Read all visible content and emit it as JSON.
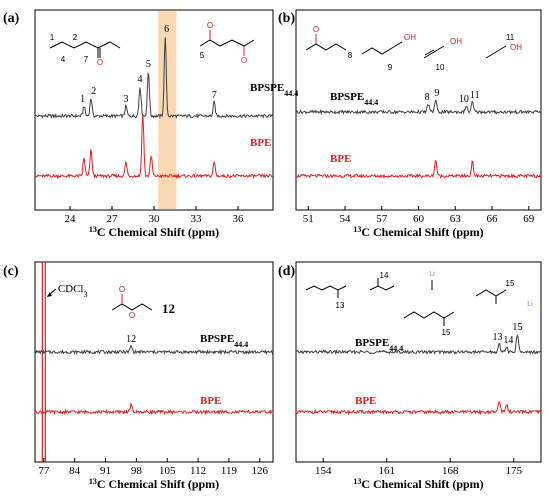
{
  "chart_data": [
    {
      "panel": "(a)",
      "type": "line",
      "xlabel": "13C Chemical Shift (ppm)",
      "xlabel_sup": "13",
      "xlabel_rest": "C Chemical Shift (ppm)",
      "xlim": [
        21.5,
        38.5
      ],
      "xticks": [
        24,
        27,
        30,
        33,
        36
      ],
      "highlight_band": [
        30.3,
        31.6
      ],
      "highlight_color": "#f6c99a",
      "series": [
        {
          "name": "BPSPE44.4",
          "label_main": "BPSPE",
          "label_sub": "44.4",
          "color": "#404040",
          "peaks": [
            {
              "x": 25.0,
              "h": 10
            },
            {
              "x": 25.5,
              "h": 18
            },
            {
              "x": 28.0,
              "h": 10
            },
            {
              "x": 29.0,
              "h": 30
            },
            {
              "x": 29.6,
              "h": 45
            },
            {
              "x": 30.8,
              "h": 80
            },
            {
              "x": 34.3,
              "h": 14
            }
          ]
        },
        {
          "name": "BPE",
          "label_main": "BPE",
          "label_sub": "",
          "color": "#e02020",
          "peaks": [
            {
              "x": 25.0,
              "h": 18
            },
            {
              "x": 25.5,
              "h": 26
            },
            {
              "x": 28.0,
              "h": 14
            },
            {
              "x": 29.2,
              "h": 62
            },
            {
              "x": 29.8,
              "h": 20
            },
            {
              "x": 34.3,
              "h": 14
            }
          ]
        }
      ],
      "peak_labels": [
        {
          "text": "1",
          "x": 24.9
        },
        {
          "text": "2",
          "x": 25.7
        },
        {
          "text": "3",
          "x": 28.0
        },
        {
          "text": "4",
          "x": 29.0
        },
        {
          "text": "5",
          "x": 29.6
        },
        {
          "text": "6",
          "x": 30.9
        },
        {
          "text": "7",
          "x": 34.3
        }
      ]
    },
    {
      "panel": "(b)",
      "type": "line",
      "xlabel_sup": "13",
      "xlabel_rest": "C Chemical Shift (ppm)",
      "xlim": [
        50,
        70
      ],
      "xticks": [
        51,
        54,
        57,
        60,
        63,
        66,
        69
      ],
      "series": [
        {
          "name": "BPSPE44.4",
          "label_main": "BPSPE",
          "label_sub": "44.4",
          "color": "#404040",
          "peaks": [
            {
              "x": 60.8,
              "h": 8
            },
            {
              "x": 61.4,
              "h": 12
            },
            {
              "x": 63.9,
              "h": 6
            },
            {
              "x": 64.4,
              "h": 10
            }
          ]
        },
        {
          "name": "BPE",
          "label_main": "BPE",
          "label_sub": "",
          "color": "#e02020",
          "peaks": [
            {
              "x": 61.4,
              "h": 16
            },
            {
              "x": 64.4,
              "h": 14
            }
          ]
        }
      ],
      "peak_labels": [
        {
          "text": "8",
          "x": 60.7
        },
        {
          "text": "9",
          "x": 61.5
        },
        {
          "text": "10",
          "x": 63.7
        },
        {
          "text": "11",
          "x": 64.6
        }
      ]
    },
    {
      "panel": "(c)",
      "type": "line",
      "xlabel_sup": "13",
      "xlabel_rest": "C Chemical Shift (ppm)",
      "xlim": [
        75,
        129
      ],
      "xticks": [
        77,
        84,
        91,
        98,
        105,
        112,
        119,
        126
      ],
      "solvent_label": "CDCl3",
      "solvent_main": "CDCl",
      "solvent_sub": "3",
      "solvent_x": 77.0,
      "series": [
        {
          "name": "BPSPE44.4",
          "label_main": "BPSPE",
          "label_sub": "44.4",
          "color": "#404040",
          "peaks": [
            {
              "x": 96.8,
              "h": 6
            }
          ]
        },
        {
          "name": "BPE",
          "label_main": "BPE",
          "label_sub": "",
          "color": "#e02020",
          "peaks": [
            {
              "x": 96.8,
              "h": 7
            }
          ]
        }
      ],
      "peak_labels": [
        {
          "text": "12",
          "x": 96.8
        }
      ],
      "molecule_label": "12"
    },
    {
      "panel": "(d)",
      "type": "line",
      "xlabel_sup": "13",
      "xlabel_rest": "C Chemical Shift (ppm)",
      "xlim": [
        151,
        178
      ],
      "xticks": [
        154,
        161,
        168,
        175
      ],
      "series": [
        {
          "name": "BPSPE44.4",
          "label_main": "BPSPE",
          "label_sub": "44.4",
          "color": "#404040",
          "peaks": [
            {
              "x": 173.4,
              "h": 8
            },
            {
              "x": 174.2,
              "h": 5
            },
            {
              "x": 175.4,
              "h": 18
            }
          ]
        },
        {
          "name": "BPE",
          "label_main": "BPE",
          "label_sub": "",
          "color": "#e02020",
          "peaks": [
            {
              "x": 173.4,
              "h": 12
            },
            {
              "x": 174.2,
              "h": 8
            }
          ]
        }
      ],
      "peak_labels": [
        {
          "text": "13",
          "x": 173.2
        },
        {
          "text": "14",
          "x": 174.4
        },
        {
          "text": "15",
          "x": 175.4
        }
      ]
    }
  ],
  "structures": {
    "a_left_numbers": [
      "1",
      "2",
      "4",
      "7"
    ],
    "a_right_number": "5",
    "a_right_peak": "6",
    "b_numbers": [
      "8",
      "9",
      "10",
      "11"
    ],
    "d_numbers": [
      "13",
      "14",
      "15"
    ],
    "oh": "OH",
    "o": "O",
    "li": "Li"
  }
}
